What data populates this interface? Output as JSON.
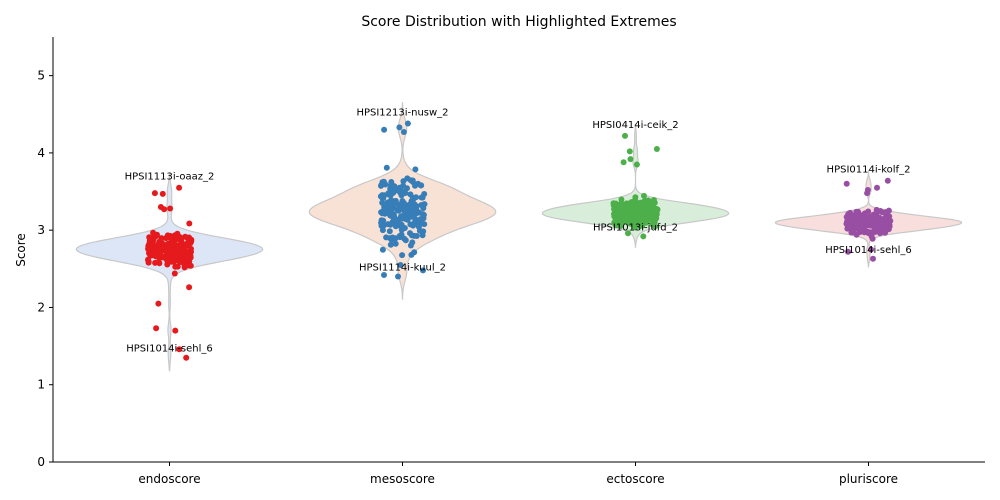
{
  "chart_data": {
    "type": "violin",
    "title": "Score Distribution with Highlighted Extremes",
    "xlabel": "",
    "ylabel": "Score",
    "ylim": [
      0,
      5.5
    ],
    "yticks": [
      0,
      1,
      2,
      3,
      4,
      5
    ],
    "categories": [
      "endoscore",
      "mesoscore",
      "ectoscore",
      "pluriscore"
    ],
    "grid": false,
    "legend": "none",
    "series": [
      {
        "category": "endoscore",
        "point_color": "#e41a1c",
        "violin_color": "#dde6f7",
        "n_points": 210,
        "center": 2.75,
        "spread": 0.22,
        "min": 1.35,
        "max": 3.55,
        "kde_extent": [
          1.18,
          3.72
        ],
        "outliers": [
          1.35,
          1.46,
          1.7,
          1.73,
          2.05,
          3.27,
          3.28,
          3.3,
          3.47,
          3.48,
          3.55
        ],
        "annotations": [
          {
            "label": "HPSI1113i-oaaz_2",
            "value": 3.55
          },
          {
            "label": "HPSI1014i-sehl_6",
            "value": 1.35
          }
        ]
      },
      {
        "category": "mesoscore",
        "point_color": "#377eb8",
        "violin_color": "#f8e2d6",
        "n_points": 200,
        "center": 3.25,
        "spread": 0.42,
        "min": 2.4,
        "max": 4.38,
        "kde_extent": [
          2.1,
          4.65
        ],
        "outliers": [
          2.4,
          2.42,
          2.48,
          2.55,
          4.27,
          4.3,
          4.33,
          4.38
        ],
        "annotations": [
          {
            "label": "HPSI1213i-nusw_2",
            "value": 4.38
          },
          {
            "label": "HPSI1114i-kuul_2",
            "value": 2.4
          }
        ]
      },
      {
        "category": "ectoscore",
        "point_color": "#4daf4a",
        "violin_color": "#d8eedb",
        "n_points": 200,
        "center": 3.22,
        "spread": 0.16,
        "min": 2.92,
        "max": 4.22,
        "kde_extent": [
          2.78,
          4.38
        ],
        "outliers": [
          2.92,
          2.96,
          3.85,
          3.88,
          3.92,
          4.02,
          4.05,
          4.22
        ],
        "annotations": [
          {
            "label": "HPSI0414i-ceik_2",
            "value": 4.22
          },
          {
            "label": "HPSI1013i-jufd_2",
            "value": 2.92
          }
        ]
      },
      {
        "category": "pluriscore",
        "point_color": "#984ea3",
        "violin_color": "#f9dede",
        "n_points": 200,
        "center": 3.1,
        "spread": 0.14,
        "min": 2.63,
        "max": 3.64,
        "kde_extent": [
          2.52,
          3.78
        ],
        "outliers": [
          2.63,
          2.72,
          2.75,
          3.48,
          3.52,
          3.55,
          3.6,
          3.64
        ],
        "annotations": [
          {
            "label": "HPSI0114i-kolf_2",
            "value": 3.64
          },
          {
            "label": "HPSI1014i-sehl_6",
            "value": 2.63
          }
        ]
      }
    ]
  }
}
